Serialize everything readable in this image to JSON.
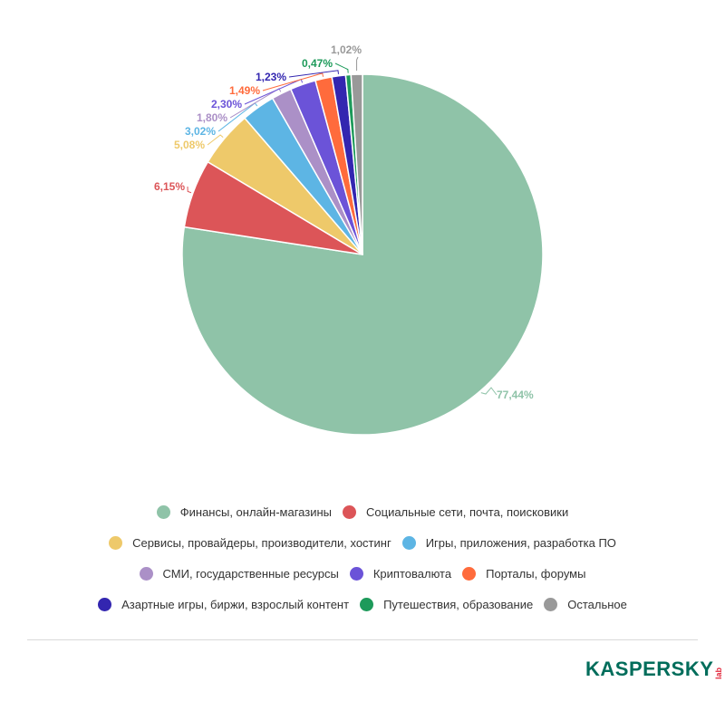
{
  "chart_data": {
    "type": "pie",
    "title": "",
    "start_angle_deg": 0,
    "direction": "clockwise",
    "legend_position": "bottom",
    "categories": [
      "Финансы, онлайн-магазины",
      "Социальные сети, почта, поисковики",
      "Сервисы, провайдеры, производители, хостинг",
      "Игры, приложения, разработка ПО",
      "СМИ, государственные ресурсы",
      "Криптовалюта",
      "Порталы, форумы",
      "Азартные игры, биржи, взрослый контент",
      "Путешествия, образование",
      "Остальное"
    ],
    "values": [
      77.44,
      6.15,
      5.08,
      3.02,
      1.8,
      2.3,
      1.49,
      1.23,
      0.47,
      1.02
    ],
    "value_labels": [
      "77,44%",
      "6,15%",
      "5,08%",
      "3,02%",
      "1,80%",
      "2,30%",
      "1,49%",
      "1,23%",
      "0,47%",
      "1,02%"
    ],
    "colors": [
      "#8fc3a8",
      "#dc5558",
      "#eec96a",
      "#5db5e4",
      "#ab90c7",
      "#6b53d8",
      "#ff6b3c",
      "#3326b0",
      "#1d9a5a",
      "#999999"
    ]
  },
  "legend": {
    "rows": [
      [
        {
          "label": "Финансы, онлайн-магазины",
          "color": "#8fc3a8"
        },
        {
          "label": "Социальные сети, почта, поисковики",
          "color": "#dc5558"
        }
      ],
      [
        {
          "label": "Сервисы, провайдеры, производители, хостинг",
          "color": "#eec96a"
        },
        {
          "label": "Игры, приложения, разработка ПО",
          "color": "#5db5e4"
        }
      ],
      [
        {
          "label": "СМИ, государственные ресурсы",
          "color": "#ab90c7"
        },
        {
          "label": "Криптовалюта",
          "color": "#6b53d8"
        },
        {
          "label": "Порталы, форумы",
          "color": "#ff6b3c"
        }
      ],
      [
        {
          "label": "Азартные игры, биржи, взрослый контент",
          "color": "#3326b0"
        },
        {
          "label": "Путешествия, образование",
          "color": "#1d9a5a"
        },
        {
          "label": "Остальное",
          "color": "#999999"
        }
      ]
    ]
  },
  "footer": {
    "brand": "KASPERSKY",
    "brand_suffix": "lab"
  }
}
